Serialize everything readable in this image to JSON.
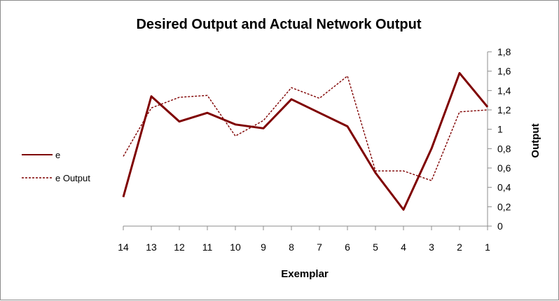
{
  "chart_data": {
    "type": "line",
    "title": "Desired Output and Actual Network Output",
    "xlabel": "Exemplar",
    "ylabel": "Output",
    "categories": [
      "14",
      "13",
      "12",
      "11",
      "10",
      "9",
      "8",
      "7",
      "6",
      "5",
      "4",
      "3",
      "2",
      "1"
    ],
    "ylim": [
      0,
      1.8
    ],
    "yticks": [
      "0",
      "0,2",
      "0,4",
      "0,6",
      "0,8",
      "1",
      "1,2",
      "1,4",
      "1,6",
      "1,8"
    ],
    "yaxis_side": "right",
    "grid": false,
    "legend_position": "left",
    "series": [
      {
        "name": "e",
        "style": "solid",
        "color": "#7f0000",
        "values": [
          0.3,
          1.34,
          1.08,
          1.17,
          1.05,
          1.01,
          1.31,
          1.17,
          1.03,
          0.55,
          0.17,
          0.8,
          1.58,
          1.23
        ]
      },
      {
        "name": "e Output",
        "style": "dashed",
        "color": "#7f0000",
        "values": [
          0.72,
          1.22,
          1.33,
          1.35,
          0.93,
          1.09,
          1.43,
          1.32,
          1.55,
          0.57,
          0.57,
          0.47,
          1.18,
          1.2
        ]
      }
    ]
  }
}
